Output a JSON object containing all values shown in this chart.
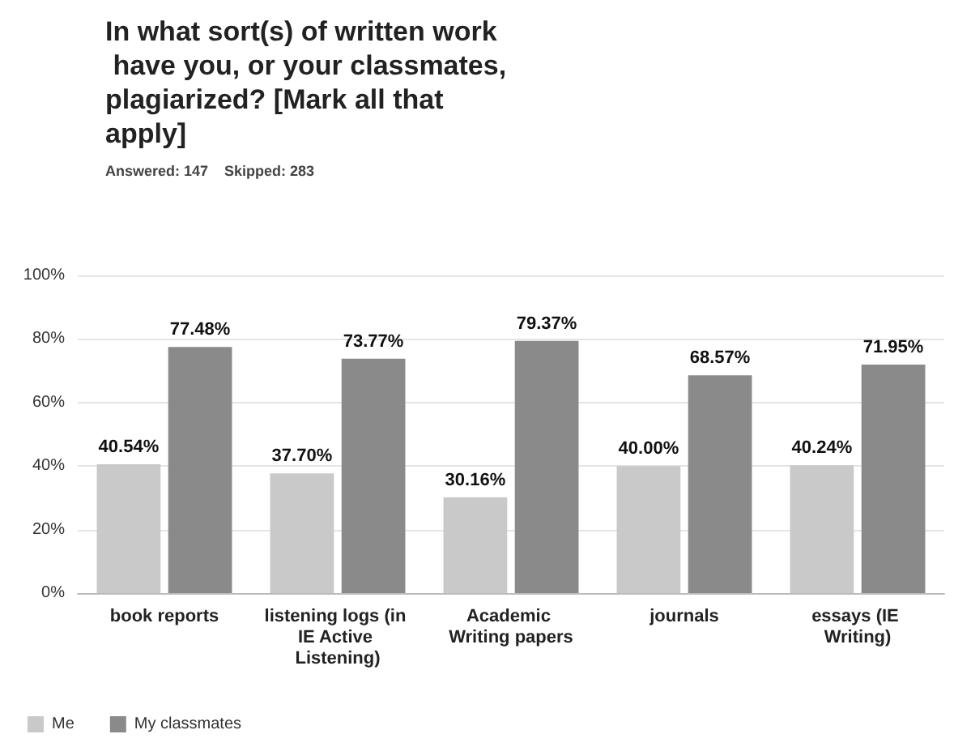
{
  "chart_data": {
    "type": "bar",
    "title": "In what sort(s) of written work have you, or your classmates, plagiarized? [Mark all that apply]",
    "subtitle": "Answered: 147    Skipped: 283",
    "categories": [
      "book reports",
      "listening logs (in IE Active Listening)",
      "Academic Writing papers",
      "journals",
      "essays (IE Writing)"
    ],
    "series": [
      {
        "name": "Me",
        "color": "#c9c9c9",
        "values": [
          40.54,
          37.7,
          30.16,
          40.0,
          40.24
        ],
        "value_labels": [
          "40.54%",
          "37.70%",
          "30.16%",
          "40.00%",
          "40.24%"
        ]
      },
      {
        "name": "My classmates",
        "color": "#8a8a8a",
        "values": [
          77.48,
          73.77,
          79.37,
          68.57,
          71.95
        ],
        "value_labels": [
          "77.48%",
          "73.77%",
          "79.37%",
          "68.57%",
          "71.95%"
        ]
      }
    ],
    "ylim": [
      0,
      100
    ],
    "yticks": [
      {
        "value": 0,
        "label": "0%"
      },
      {
        "value": 20,
        "label": "20%"
      },
      {
        "value": 40,
        "label": "40%"
      },
      {
        "value": 60,
        "label": "60%"
      },
      {
        "value": 80,
        "label": "80%"
      },
      {
        "value": 100,
        "label": "100%"
      }
    ],
    "grid": "y",
    "legend": "bottom left"
  }
}
